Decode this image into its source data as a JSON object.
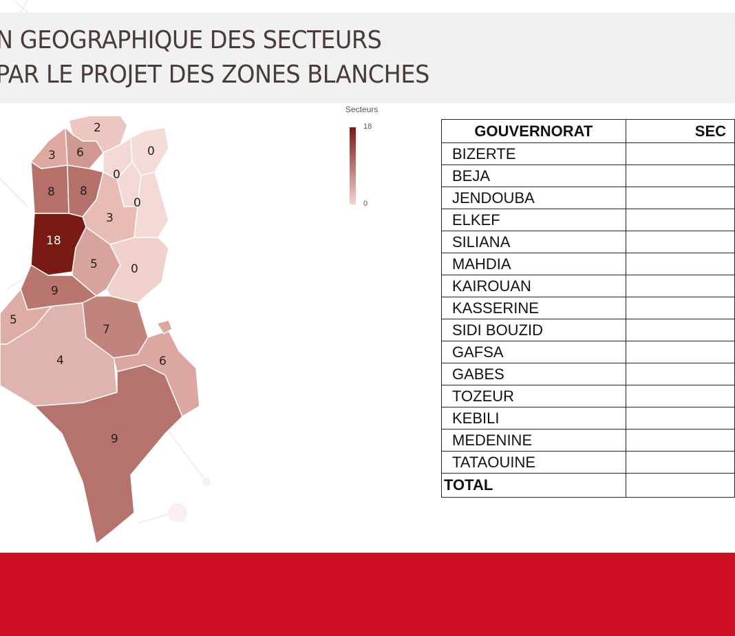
{
  "title": {
    "line1": "N GEOGRAPHIQUE DES SECTEURS",
    "line2": "PAR LE PROJET DES ZONES BLANCHES"
  },
  "legend": {
    "title": "Secteurs",
    "max": "18",
    "min": "0",
    "color_max": "#7a1a14",
    "color_min": "#f3d3d0"
  },
  "map": {
    "labels": [
      "2",
      "3",
      "6",
      "0",
      "0",
      "8",
      "8",
      "0",
      "3",
      "18",
      "5",
      "0",
      "9",
      "5",
      "7",
      "4",
      "6",
      "9"
    ]
  },
  "table": {
    "headers": [
      "GOUVERNORAT",
      "SEC"
    ],
    "rows": [
      "BIZERTE",
      "BEJA",
      "JENDOUBA",
      "ELKEF",
      "SILIANA",
      "MAHDIA",
      "KAIROUAN",
      "KASSERINE",
      "SIDI BOUZID",
      "GAFSA",
      "GABES",
      "TOZEUR",
      "KEBILI",
      "MEDENINE",
      "TATAOUINE"
    ],
    "total_label": "TOTAL"
  },
  "colors": {
    "title_band": "#f1f1f1",
    "title_text": "#4a3b36",
    "footer": "#cf1024"
  }
}
